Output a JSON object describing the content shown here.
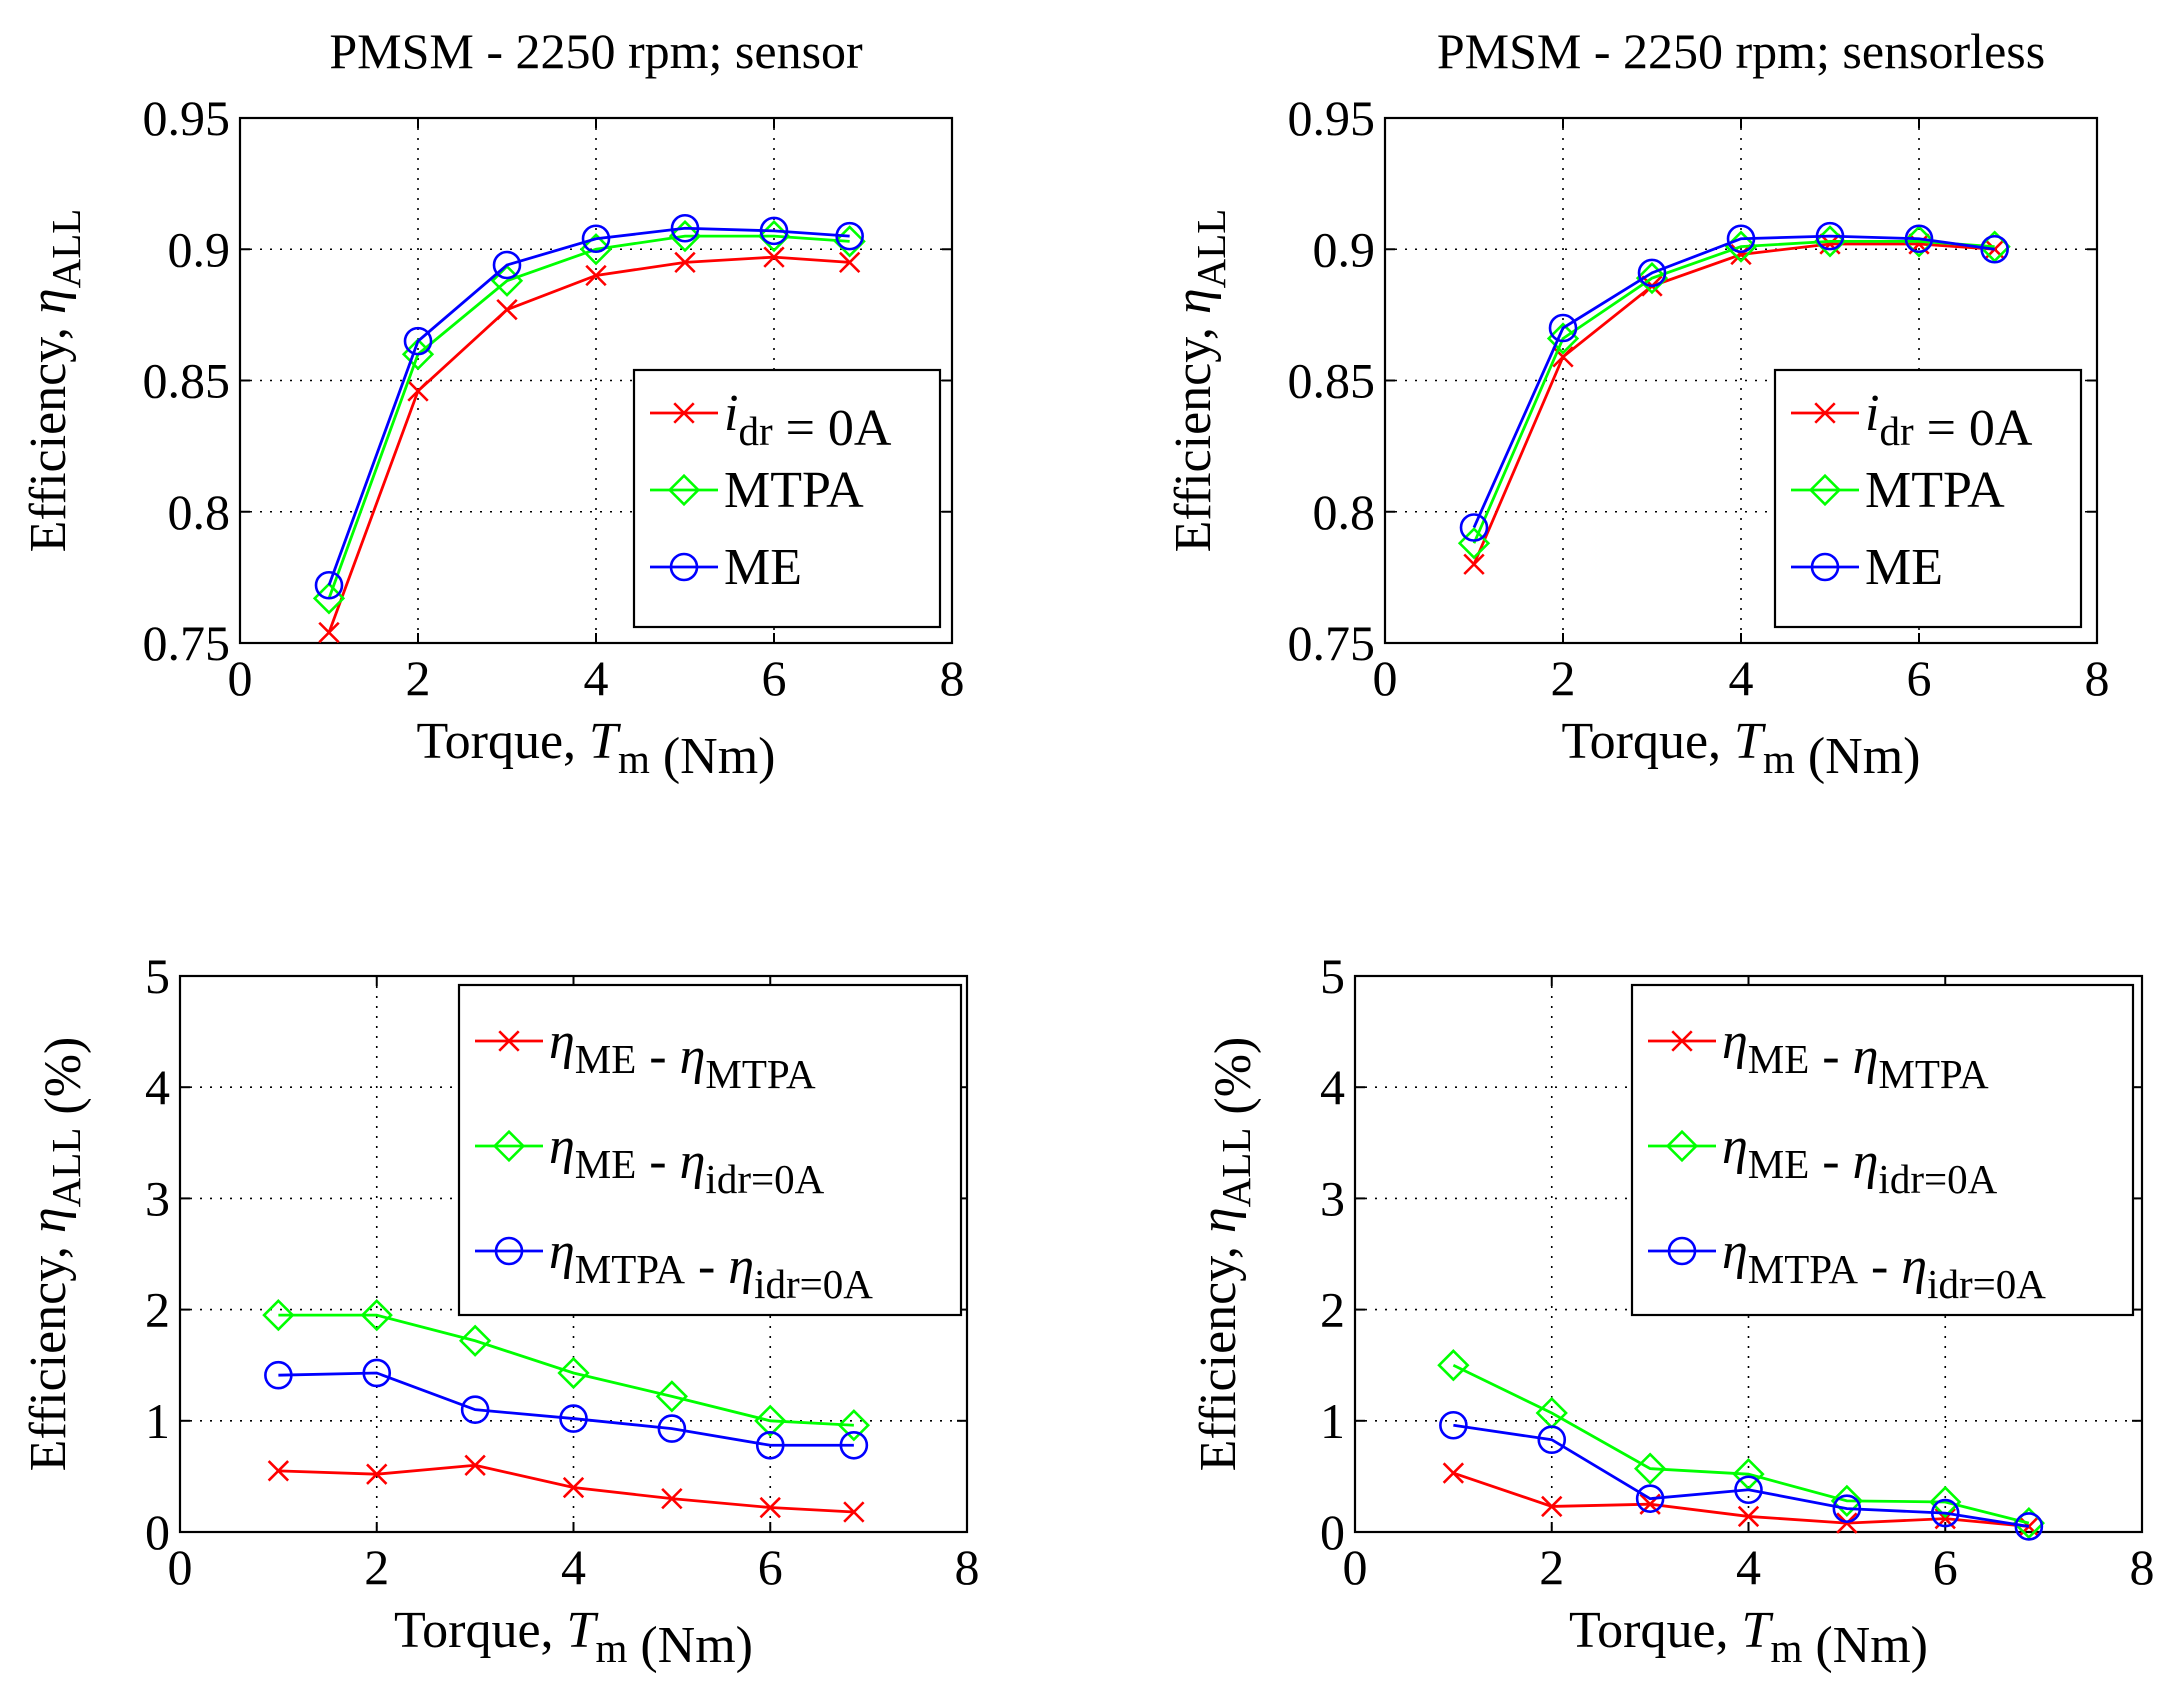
{
  "chart_data": [
    {
      "type": "line",
      "title": "PMSM - 2250 rpm; sensor",
      "xlabel": {
        "prefix": "Torque, ",
        "var": "T",
        "sub": "m",
        "suffix": " (Nm)"
      },
      "ylabel": {
        "prefix": "Efficiency, ",
        "var": "η",
        "sub": "ALL",
        "suffix": ""
      },
      "xlim": [
        0,
        8
      ],
      "ylim": [
        0.75,
        0.95
      ],
      "xticks": [
        0,
        2,
        4,
        6,
        8
      ],
      "xtick_labels": [
        "0",
        "2",
        "4",
        "6",
        "8"
      ],
      "yticks": [
        0.75,
        0.8,
        0.85,
        0.9,
        0.95
      ],
      "ytick_labels": [
        "0.75",
        "0.8",
        "0.85",
        "0.9",
        "0.95"
      ],
      "grid": true,
      "legend_position": "center-right",
      "series": [
        {
          "name": "i_dr = 0A",
          "label_parts": [
            {
              "t": "i",
              "i": true
            },
            {
              "t": "dr",
              "sub": true
            },
            {
              "t": " = 0A"
            }
          ],
          "color": "#ff0000",
          "marker": "x",
          "x": [
            1,
            2,
            3,
            4,
            5,
            6,
            6.85
          ],
          "y": [
            0.754,
            0.846,
            0.877,
            0.89,
            0.895,
            0.897,
            0.895
          ]
        },
        {
          "name": "MTPA",
          "label_parts": [
            {
              "t": "MTPA"
            }
          ],
          "color": "#00ff00",
          "marker": "diamond",
          "x": [
            1,
            2,
            3,
            4,
            5,
            6,
            6.85
          ],
          "y": [
            0.767,
            0.86,
            0.888,
            0.9,
            0.905,
            0.905,
            0.903
          ]
        },
        {
          "name": "ME",
          "label_parts": [
            {
              "t": "ME"
            }
          ],
          "color": "#0000ff",
          "marker": "circle",
          "x": [
            1,
            2,
            3,
            4,
            5,
            6,
            6.85
          ],
          "y": [
            0.772,
            0.865,
            0.894,
            0.904,
            0.908,
            0.907,
            0.905
          ]
        }
      ]
    },
    {
      "type": "line",
      "title": "PMSM - 2250 rpm; sensorless",
      "xlabel": {
        "prefix": "Torque, ",
        "var": "T",
        "sub": "m",
        "suffix": " (Nm)"
      },
      "ylabel": {
        "prefix": "Efficiency, ",
        "var": "η",
        "sub": "ALL",
        "suffix": ""
      },
      "xlim": [
        0,
        8
      ],
      "ylim": [
        0.75,
        0.95
      ],
      "xticks": [
        0,
        2,
        4,
        6,
        8
      ],
      "xtick_labels": [
        "0",
        "2",
        "4",
        "6",
        "8"
      ],
      "yticks": [
        0.75,
        0.8,
        0.85,
        0.9,
        0.95
      ],
      "ytick_labels": [
        "0.75",
        "0.8",
        "0.85",
        "0.9",
        "0.95"
      ],
      "grid": true,
      "legend_position": "center-right",
      "series": [
        {
          "name": "i_dr = 0A",
          "label_parts": [
            {
              "t": "i",
              "i": true
            },
            {
              "t": "dr",
              "sub": true
            },
            {
              "t": " = 0A"
            }
          ],
          "color": "#ff0000",
          "marker": "x",
          "x": [
            1,
            2,
            3,
            4,
            5,
            6,
            6.85
          ],
          "y": [
            0.78,
            0.859,
            0.886,
            0.898,
            0.902,
            0.902,
            0.9
          ]
        },
        {
          "name": "MTPA",
          "label_parts": [
            {
              "t": "MTPA"
            }
          ],
          "color": "#00ff00",
          "marker": "diamond",
          "x": [
            1,
            2,
            3,
            4,
            5,
            6,
            6.85
          ],
          "y": [
            0.788,
            0.866,
            0.889,
            0.901,
            0.903,
            0.903,
            0.901
          ]
        },
        {
          "name": "ME",
          "label_parts": [
            {
              "t": "ME"
            }
          ],
          "color": "#0000ff",
          "marker": "circle",
          "x": [
            1,
            2,
            3,
            4,
            5,
            6,
            6.85
          ],
          "y": [
            0.794,
            0.87,
            0.891,
            0.904,
            0.905,
            0.904,
            0.9
          ]
        }
      ]
    },
    {
      "type": "line",
      "title": "",
      "xlabel": {
        "prefix": "Torque, ",
        "var": "T",
        "sub": "m",
        "suffix": " (Nm)"
      },
      "ylabel": {
        "prefix": "Efficiency, ",
        "var": "η",
        "sub": "ALL",
        "suffix": " (%)"
      },
      "xlim": [
        0,
        8
      ],
      "ylim": [
        0,
        5
      ],
      "xticks": [
        0,
        2,
        4,
        6,
        8
      ],
      "xtick_labels": [
        "0",
        "2",
        "4",
        "6",
        "8"
      ],
      "yticks": [
        0,
        1,
        2,
        3,
        4,
        5
      ],
      "ytick_labels": [
        "0",
        "1",
        "2",
        "3",
        "4",
        "5"
      ],
      "grid": true,
      "legend_position": "top-right",
      "series": [
        {
          "name": "η_ME - η_MTPA",
          "label_parts": [
            {
              "t": "η",
              "i": true
            },
            {
              "t": "ME",
              "sub": true
            },
            {
              "t": " - "
            },
            {
              "t": "η",
              "i": true
            },
            {
              "t": "MTPA",
              "sub": true
            }
          ],
          "color": "#ff0000",
          "marker": "x",
          "x": [
            1,
            2,
            3,
            4,
            5,
            6,
            6.85
          ],
          "y": [
            0.55,
            0.52,
            0.6,
            0.4,
            0.3,
            0.22,
            0.18
          ]
        },
        {
          "name": "η_ME - η_idr=0A",
          "label_parts": [
            {
              "t": "η",
              "i": true
            },
            {
              "t": "ME",
              "sub": true
            },
            {
              "t": " - "
            },
            {
              "t": "η",
              "i": true
            },
            {
              "t": "idr=0A",
              "sub": true
            }
          ],
          "color": "#00ff00",
          "marker": "diamond",
          "x": [
            1,
            2,
            3,
            4,
            5,
            6,
            6.85
          ],
          "y": [
            1.95,
            1.95,
            1.72,
            1.43,
            1.22,
            1.0,
            0.96
          ]
        },
        {
          "name": "η_MTPA - η_idr=0A",
          "label_parts": [
            {
              "t": "η",
              "i": true
            },
            {
              "t": "MTPA",
              "sub": true
            },
            {
              "t": " - "
            },
            {
              "t": "η",
              "i": true
            },
            {
              "t": "idr=0A",
              "sub": true
            }
          ],
          "color": "#0000ff",
          "marker": "circle",
          "x": [
            1,
            2,
            3,
            4,
            5,
            6,
            6.85
          ],
          "y": [
            1.41,
            1.43,
            1.1,
            1.02,
            0.93,
            0.78,
            0.78
          ]
        }
      ]
    },
    {
      "type": "line",
      "title": "",
      "xlabel": {
        "prefix": "Torque, ",
        "var": "T",
        "sub": "m",
        "suffix": " (Nm)"
      },
      "ylabel": {
        "prefix": "Efficiency, ",
        "var": "η",
        "sub": "ALL",
        "suffix": " (%)"
      },
      "xlim": [
        0,
        8
      ],
      "ylim": [
        0,
        5
      ],
      "xticks": [
        0,
        2,
        4,
        6,
        8
      ],
      "xtick_labels": [
        "0",
        "2",
        "4",
        "6",
        "8"
      ],
      "yticks": [
        0,
        1,
        2,
        3,
        4,
        5
      ],
      "ytick_labels": [
        "0",
        "1",
        "2",
        "3",
        "4",
        "5"
      ],
      "grid": true,
      "legend_position": "top-right",
      "series": [
        {
          "name": "η_ME - η_MTPA",
          "label_parts": [
            {
              "t": "η",
              "i": true
            },
            {
              "t": "ME",
              "sub": true
            },
            {
              "t": " - "
            },
            {
              "t": "η",
              "i": true
            },
            {
              "t": "MTPA",
              "sub": true
            }
          ],
          "color": "#ff0000",
          "marker": "x",
          "x": [
            1,
            2,
            3,
            4,
            5,
            6,
            6.85
          ],
          "y": [
            0.53,
            0.23,
            0.25,
            0.14,
            0.08,
            0.12,
            0.05
          ]
        },
        {
          "name": "η_ME - η_idr=0A",
          "label_parts": [
            {
              "t": "η",
              "i": true
            },
            {
              "t": "ME",
              "sub": true
            },
            {
              "t": " - "
            },
            {
              "t": "η",
              "i": true
            },
            {
              "t": "idr=0A",
              "sub": true
            }
          ],
          "color": "#00ff00",
          "marker": "diamond",
          "x": [
            1,
            2,
            3,
            4,
            5,
            6,
            6.85
          ],
          "y": [
            1.5,
            1.07,
            0.57,
            0.52,
            0.28,
            0.27,
            0.08
          ]
        },
        {
          "name": "η_MTPA - η_idr=0A",
          "label_parts": [
            {
              "t": "η",
              "i": true
            },
            {
              "t": "MTPA",
              "sub": true
            },
            {
              "t": " - "
            },
            {
              "t": "η",
              "i": true
            },
            {
              "t": "idr=0A",
              "sub": true
            }
          ],
          "color": "#0000ff",
          "marker": "circle",
          "x": [
            1,
            2,
            3,
            4,
            5,
            6,
            6.85
          ],
          "y": [
            0.96,
            0.83,
            0.3,
            0.38,
            0.21,
            0.17,
            0.05
          ]
        }
      ]
    }
  ]
}
